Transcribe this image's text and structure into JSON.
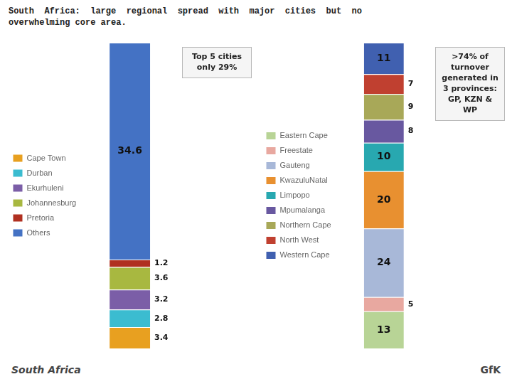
{
  "title": [
    "South  Africa:  large  regional  spread  with  major  cities  but  no",
    "overwhelming core area."
  ],
  "annotations": [
    "South Africa",
    "GfK"
  ],
  "chart_data": [
    {
      "type": "bar",
      "stacked": true,
      "categories": [
        null
      ],
      "series": [
        {
          "name": "Cape Town",
          "color": "#E8A020",
          "values": [
            3.4
          ]
        },
        {
          "name": "Durban",
          "color": "#3BBCD0",
          "values": [
            2.8
          ]
        },
        {
          "name": "Ekurhuleni",
          "color": "#7B5EA7",
          "values": [
            3.2
          ]
        },
        {
          "name": "Johannesburg",
          "color": "#A8B840",
          "values": [
            3.6
          ]
        },
        {
          "name": "Pretoria",
          "color": "#B03020",
          "values": [
            1.2
          ]
        },
        {
          "name": "Others",
          "color": "#4472C4",
          "values": [
            34.6
          ]
        }
      ],
      "ylim": [
        0,
        48.8
      ],
      "tick_labels": false,
      "data_labels": true,
      "legend": "left",
      "annotations": [
        "Top 5 cities\nonly 29%"
      ]
    },
    {
      "type": "bar",
      "stacked": true,
      "categories": [
        null
      ],
      "series": [
        {
          "name": "Eastern Cape",
          "color": "#B8D496",
          "values": [
            13
          ]
        },
        {
          "name": "Freestate",
          "color": "#E8A8A0",
          "values": [
            5
          ]
        },
        {
          "name": "Gauteng",
          "color": "#A8B8D8",
          "values": [
            24
          ]
        },
        {
          "name": "KwazuluNatal",
          "color": "#E89030",
          "values": [
            20
          ]
        },
        {
          "name": "Limpopo",
          "color": "#28A8B0",
          "values": [
            10
          ]
        },
        {
          "name": "Mpumalanga",
          "color": "#6858A0",
          "values": [
            8
          ]
        },
        {
          "name": "Northern Cape",
          "color": "#A8A858",
          "values": [
            9
          ]
        },
        {
          "name": "North West",
          "color": "#C04030",
          "values": [
            7
          ]
        },
        {
          "name": "Western Cape",
          "color": "#4060B0",
          "values": [
            11
          ]
        }
      ],
      "ylim": [
        0,
        107
      ],
      "tick_labels": false,
      "data_labels": true,
      "legend": "left",
      "annotations": [
        ">74% of\nturnover\ngenerated in\n3 provinces:\nGP, KZN &\nWP"
      ]
    }
  ]
}
